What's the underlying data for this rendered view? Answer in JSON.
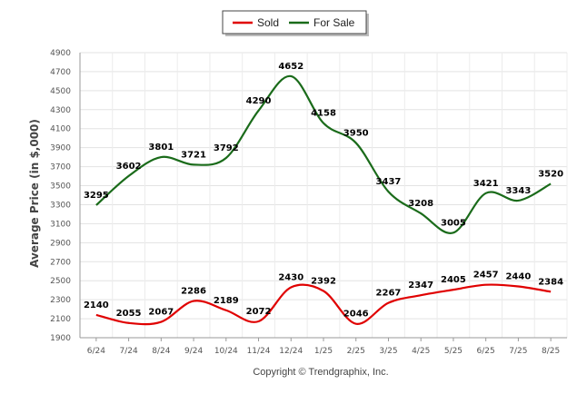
{
  "chart_data": {
    "type": "line",
    "title": "",
    "xlabel": "",
    "ylabel": "Average Price (in $,000)",
    "categories": [
      "6/24",
      "7/24",
      "8/24",
      "9/24",
      "10/24",
      "11/24",
      "12/24",
      "1/25",
      "2/25",
      "3/25",
      "4/25",
      "5/25",
      "6/25",
      "7/25",
      "8/25"
    ],
    "yticks": [
      1900,
      2100,
      2300,
      2500,
      2700,
      2900,
      3100,
      3300,
      3500,
      3700,
      3900,
      4100,
      4300,
      4500,
      4700,
      4900
    ],
    "ylim": [
      1900,
      4900
    ],
    "grid": true,
    "legend_position": "top-center",
    "series": [
      {
        "name": "Sold",
        "color": "#e00000",
        "values": [
          2140,
          2055,
          2067,
          2286,
          2189,
          2072,
          2430,
          2392,
          2046,
          2267,
          2347,
          2405,
          2457,
          2440,
          2384
        ]
      },
      {
        "name": "For Sale",
        "color": "#1a6b1a",
        "values": [
          3295,
          3602,
          3801,
          3721,
          3792,
          4290,
          4652,
          4158,
          3950,
          3437,
          3208,
          3005,
          3421,
          3343,
          3520
        ]
      }
    ]
  },
  "footer": {
    "copyright": "Copyright © Trendgraphix, Inc."
  }
}
